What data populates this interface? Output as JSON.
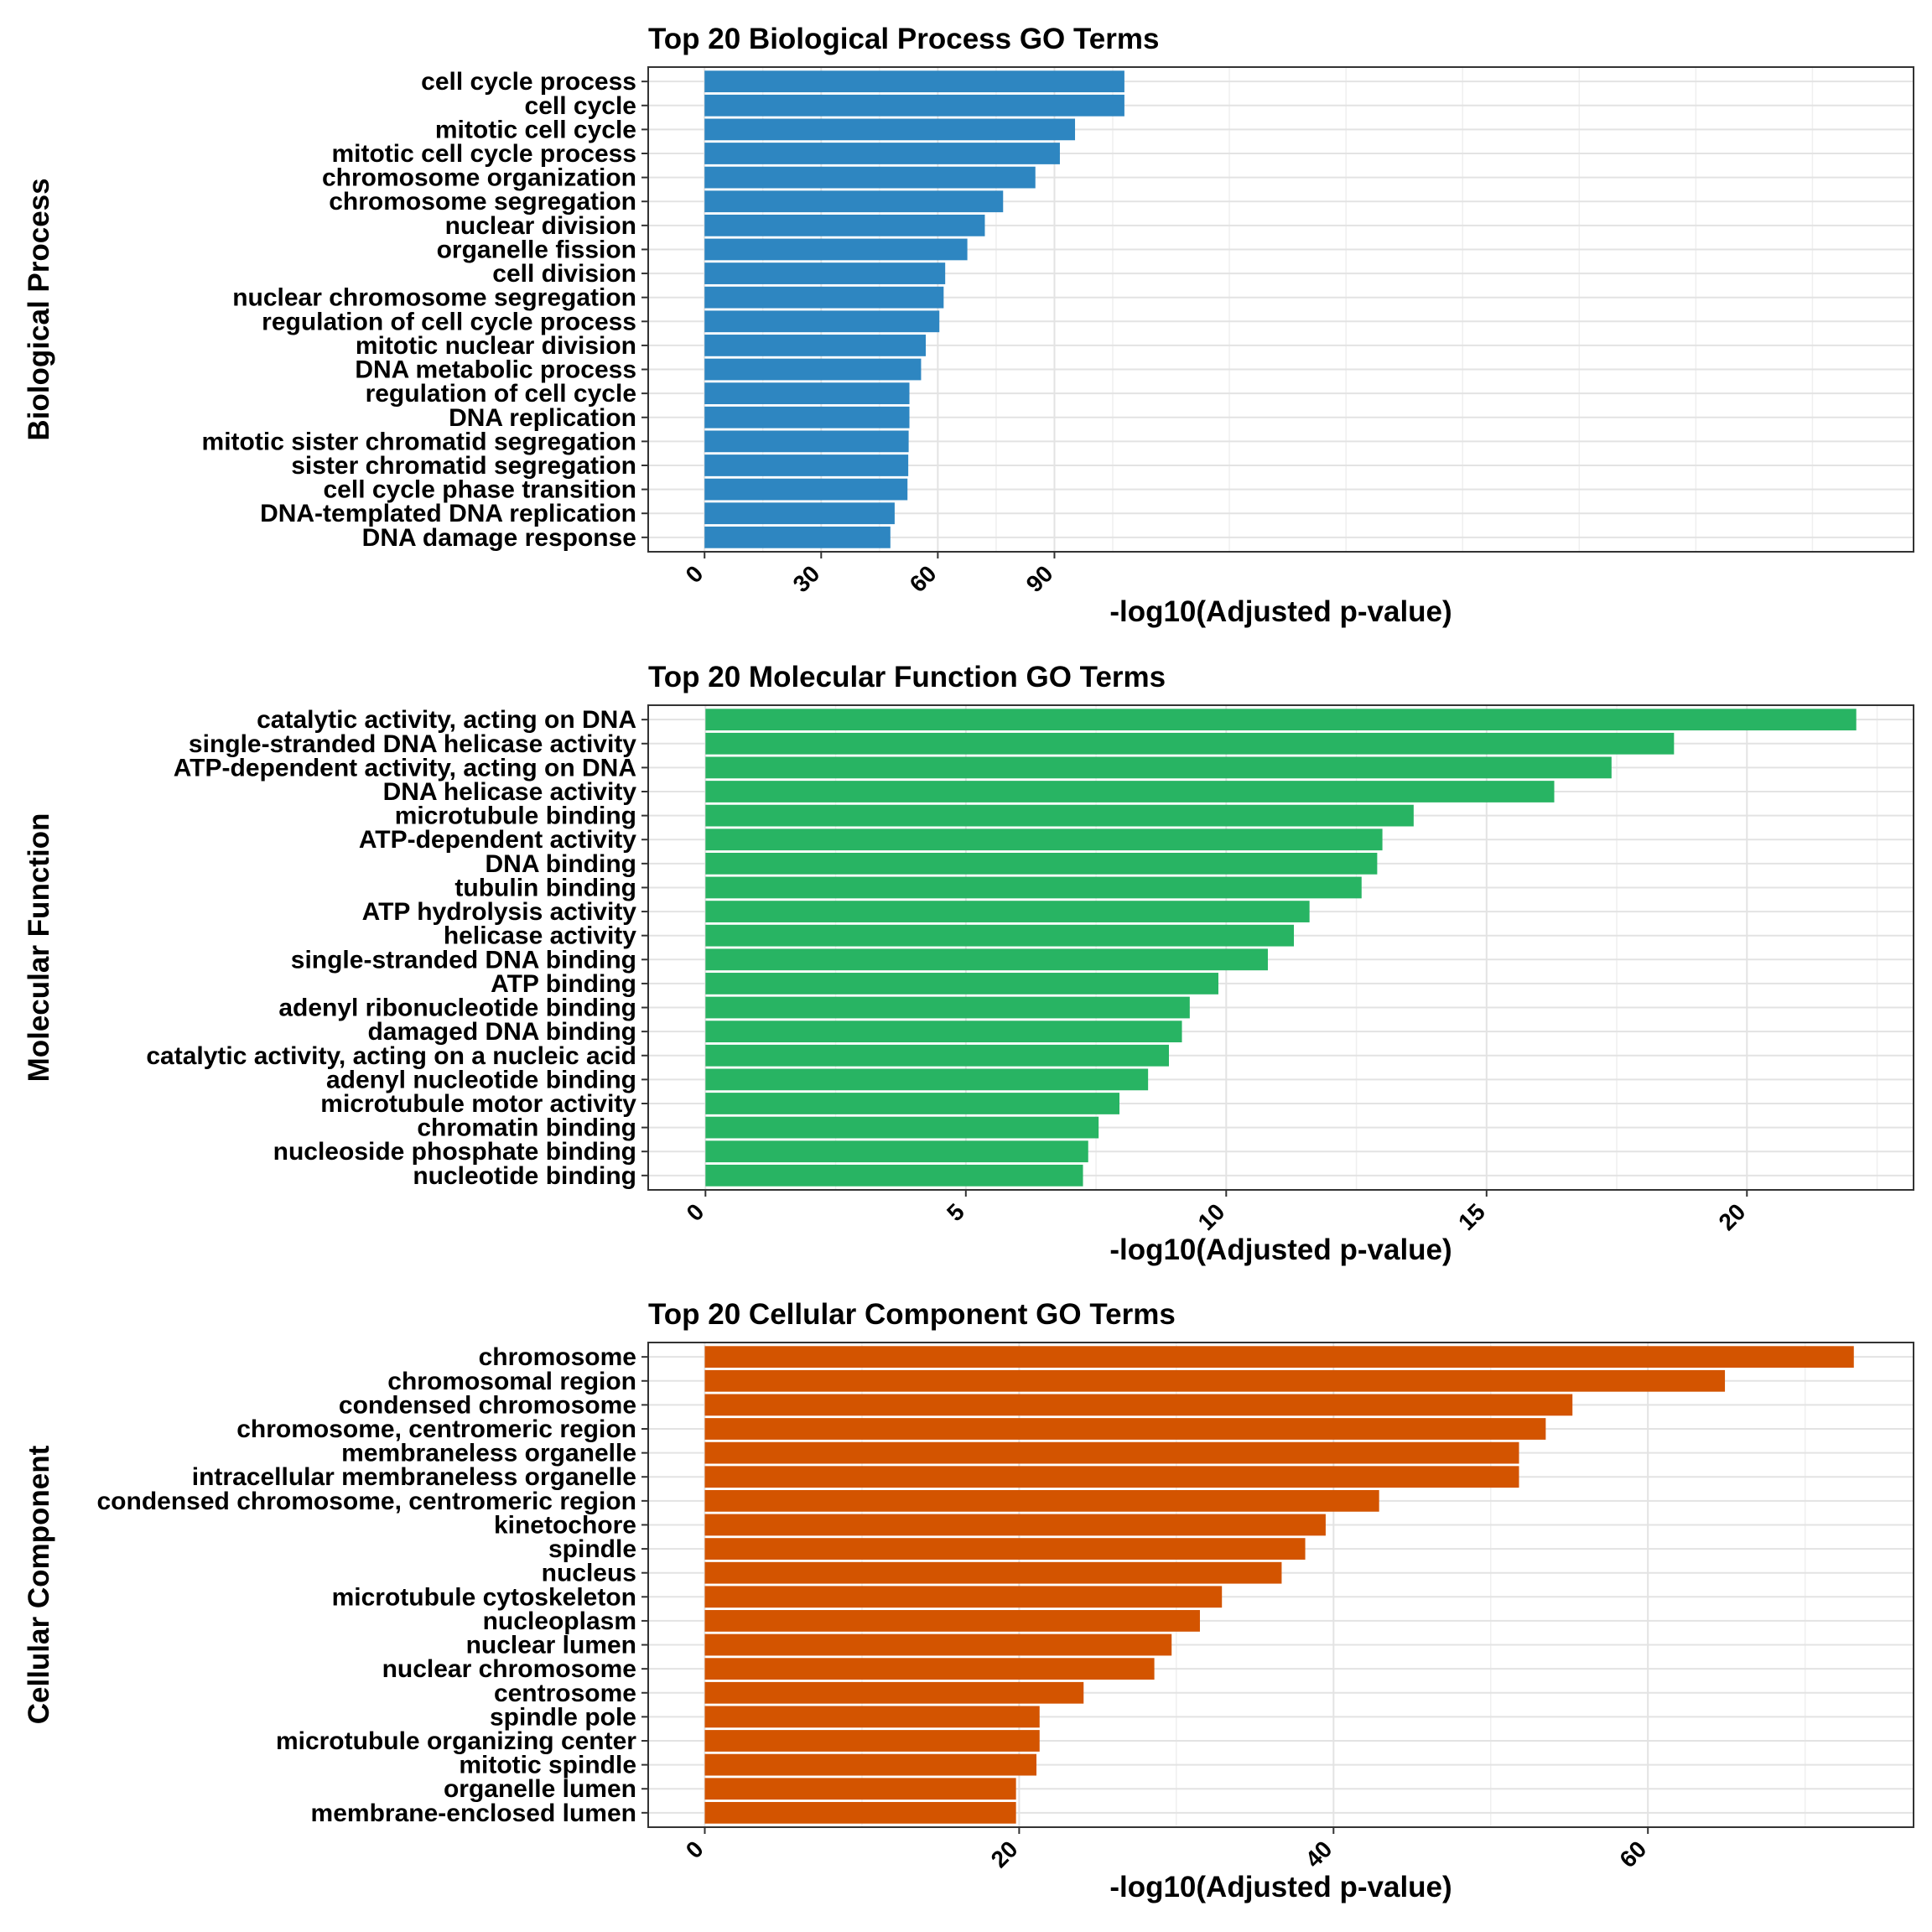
{
  "chart_data": [
    {
      "type": "bar",
      "orientation": "horizontal",
      "title": "Top 20 Biological Process GO Terms",
      "ylabel": "Biological Process",
      "xlabel": "-log10(Adjusted p-value)",
      "color": "#2E86C1",
      "xlim": [
        -14.5,
        311
      ],
      "xticks": [
        0,
        30,
        60,
        90
      ],
      "grid": true,
      "categories": [
        "cell cycle process",
        "cell cycle",
        "mitotic cell cycle",
        "mitotic cell cycle process",
        "chromosome organization",
        "chromosome segregation",
        "nuclear division",
        "organelle fission",
        "cell division",
        "nuclear chromosome segregation",
        "regulation of cell cycle process",
        "mitotic nuclear division",
        "DNA metabolic process",
        "regulation of cell cycle",
        "DNA replication",
        "mitotic sister chromatid segregation",
        "sister chromatid segregation",
        "cell cycle phase transition",
        "DNA-templated DNA replication",
        "DNA damage response"
      ],
      "values": [
        108,
        108,
        95.3,
        91.4,
        85.1,
        76.8,
        72.1,
        67.6,
        61.9,
        61.5,
        60.4,
        56.9,
        55.7,
        52.7,
        52.7,
        52.5,
        52.4,
        52.2,
        48.9,
        47.8
      ]
    },
    {
      "type": "bar",
      "orientation": "horizontal",
      "title": "Top 20 Molecular Function GO Terms",
      "ylabel": "Molecular Function",
      "xlabel": "-log10(Adjusted p-value)",
      "color": "#28B463",
      "xlim": [
        -1.1,
        23.2
      ],
      "xticks": [
        0,
        5,
        10,
        15,
        20
      ],
      "grid": true,
      "categories": [
        "catalytic activity, acting on DNA",
        "single-stranded DNA helicase activity",
        "ATP-dependent activity, acting on DNA",
        "DNA helicase activity",
        "microtubule binding",
        "ATP-dependent activity",
        "DNA binding",
        "tubulin binding",
        "ATP hydrolysis activity",
        "helicase activity",
        "single-stranded DNA binding",
        "ATP binding",
        "adenyl ribonucleotide binding",
        "damaged DNA binding",
        "catalytic activity, acting on a nucleic acid",
        "adenyl nucleotide binding",
        "microtubule motor activity",
        "chromatin binding",
        "nucleoside phosphate binding",
        "nucleotide binding"
      ],
      "values": [
        22.1,
        18.6,
        17.4,
        16.3,
        13.6,
        13.0,
        12.9,
        12.6,
        11.6,
        11.3,
        10.8,
        9.85,
        9.3,
        9.15,
        8.9,
        8.5,
        7.95,
        7.55,
        7.35,
        7.25
      ]
    },
    {
      "type": "bar",
      "orientation": "horizontal",
      "title": "Top 20 Cellular Component GO Terms",
      "ylabel": "Cellular Component",
      "xlabel": "-log10(Adjusted p-value)",
      "color": "#D35400",
      "xlim": [
        -3.6,
        76.9
      ],
      "xticks": [
        0,
        20,
        40,
        60
      ],
      "grid": true,
      "categories": [
        "chromosome",
        "chromosomal region",
        "condensed chromosome",
        "chromosome, centromeric region",
        "membraneless organelle",
        "intracellular membraneless organelle",
        "condensed chromosome, centromeric region",
        "kinetochore",
        "spindle",
        "nucleus",
        "microtubule cytoskeleton",
        "nucleoplasm",
        "nuclear lumen",
        "nuclear chromosome",
        "centrosome",
        "spindle pole",
        "microtubule organizing center",
        "mitotic spindle",
        "organelle lumen",
        "membrane-enclosed lumen"
      ],
      "values": [
        73.1,
        64.9,
        55.2,
        53.5,
        51.8,
        51.8,
        42.9,
        39.5,
        38.2,
        36.7,
        32.9,
        31.5,
        29.7,
        28.6,
        24.1,
        21.3,
        21.3,
        21.1,
        19.8,
        19.8
      ]
    }
  ]
}
